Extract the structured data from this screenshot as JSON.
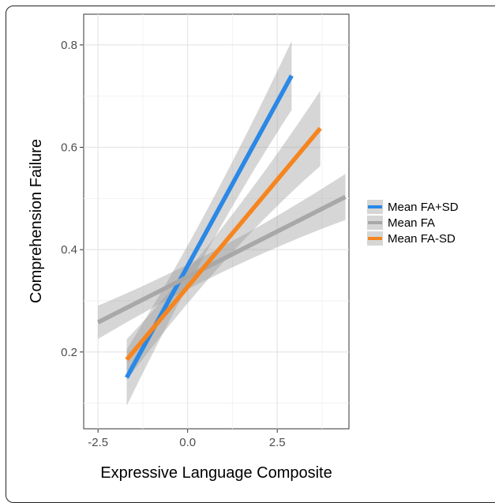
{
  "chart_data": {
    "type": "line",
    "xlabel": "Expressive Language Composite",
    "ylabel": "Comprehension Failure",
    "xlim": [
      -2.9,
      4.5
    ],
    "ylim": [
      0.05,
      0.86
    ],
    "xticks": [
      -2.5,
      0.0,
      2.5
    ],
    "xtick_labels": [
      "-2.5",
      "0.0",
      "2.5"
    ],
    "yticks": [
      0.2,
      0.4,
      0.6,
      0.8
    ],
    "ytick_labels": [
      "0.2",
      "0.4",
      "0.6",
      "0.8"
    ],
    "grid": true,
    "panel_background": "#ffffff",
    "legend_position": "right",
    "series": [
      {
        "name": "Mean FA+SD",
        "color": "#2a88e6",
        "x": [
          -1.7,
          2.9
        ],
        "y": [
          0.15,
          0.74
        ],
        "ci_lower": [
          0.095,
          0.69
        ],
        "ci_upper": [
          0.205,
          0.825
        ]
      },
      {
        "name": "Mean FA",
        "color": "#a8a8a8",
        "x": [
          -2.5,
          4.4
        ],
        "y": [
          0.258,
          0.503
        ],
        "ci_lower": [
          0.225,
          0.458
        ],
        "ci_upper": [
          0.29,
          0.548
        ]
      },
      {
        "name": "Mean FA-SD",
        "color": "#f6851f",
        "x": [
          -1.7,
          3.7
        ],
        "y": [
          0.185,
          0.637
        ],
        "ci_lower": [
          0.145,
          0.568
        ],
        "ci_upper": [
          0.225,
          0.715
        ]
      }
    ]
  }
}
